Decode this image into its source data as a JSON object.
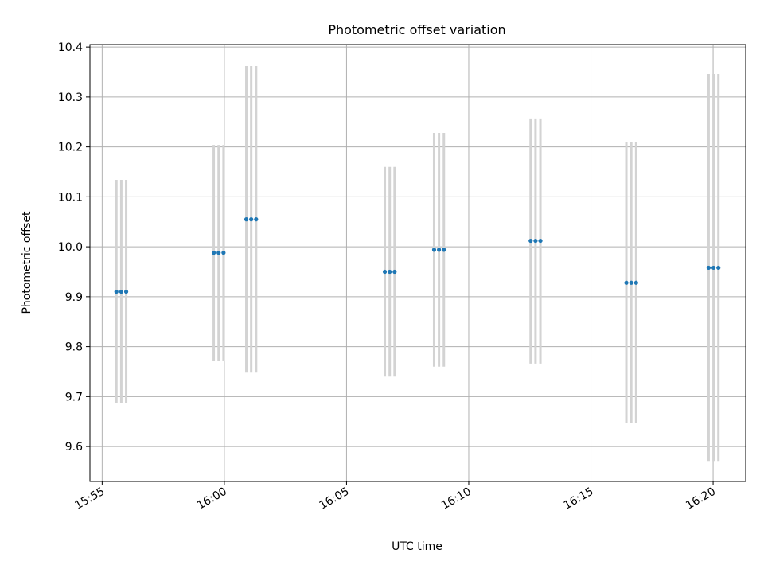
{
  "chart_data": {
    "type": "scatter",
    "title": "Photometric offset variation",
    "xlabel": "UTC time",
    "ylabel": "Photometric offset",
    "xlim": [
      "15:54:30",
      "16:21:20"
    ],
    "ylim": [
      9.53,
      10.405
    ],
    "x_ticks": [
      "15:55",
      "16:00",
      "16:05",
      "16:10",
      "16:15",
      "16:20"
    ],
    "y_ticks": [
      "9.6",
      "9.7",
      "9.8",
      "9.9",
      "10.0",
      "10.1",
      "10.2",
      "10.3",
      "10.4"
    ],
    "grid": true,
    "colors": {
      "points": "#1f77b4",
      "errorbars": "#d3d3d3",
      "grid": "#b0b0b0"
    },
    "series": [
      {
        "points": [
          {
            "time": "15:55:35",
            "y": 9.91,
            "ymin": 9.687,
            "ymax": 10.134
          },
          {
            "time": "15:55:47",
            "y": 9.91,
            "ymin": 9.687,
            "ymax": 10.134
          },
          {
            "time": "15:55:59",
            "y": 9.91,
            "ymin": 9.687,
            "ymax": 10.134
          },
          {
            "time": "15:59:34",
            "y": 9.988,
            "ymin": 9.772,
            "ymax": 10.204
          },
          {
            "time": "15:59:46",
            "y": 9.988,
            "ymin": 9.772,
            "ymax": 10.204
          },
          {
            "time": "15:59:58",
            "y": 9.988,
            "ymin": 9.772,
            "ymax": 10.204
          },
          {
            "time": "16:00:54",
            "y": 10.055,
            "ymin": 9.748,
            "ymax": 10.362
          },
          {
            "time": "16:01:06",
            "y": 10.055,
            "ymin": 9.748,
            "ymax": 10.362
          },
          {
            "time": "16:01:18",
            "y": 10.055,
            "ymin": 9.748,
            "ymax": 10.362
          },
          {
            "time": "16:06:34",
            "y": 9.95,
            "ymin": 9.74,
            "ymax": 10.16
          },
          {
            "time": "16:06:46",
            "y": 9.95,
            "ymin": 9.74,
            "ymax": 10.16
          },
          {
            "time": "16:06:58",
            "y": 9.95,
            "ymin": 9.74,
            "ymax": 10.16
          },
          {
            "time": "16:08:35",
            "y": 9.994,
            "ymin": 9.76,
            "ymax": 10.228
          },
          {
            "time": "16:08:47",
            "y": 9.994,
            "ymin": 9.76,
            "ymax": 10.228
          },
          {
            "time": "16:08:59",
            "y": 9.994,
            "ymin": 9.76,
            "ymax": 10.228
          },
          {
            "time": "16:12:32",
            "y": 10.012,
            "ymin": 9.766,
            "ymax": 10.257
          },
          {
            "time": "16:12:44",
            "y": 10.012,
            "ymin": 9.766,
            "ymax": 10.257
          },
          {
            "time": "16:12:56",
            "y": 10.012,
            "ymin": 9.766,
            "ymax": 10.257
          },
          {
            "time": "16:16:27",
            "y": 9.928,
            "ymin": 9.647,
            "ymax": 10.21
          },
          {
            "time": "16:16:39",
            "y": 9.928,
            "ymin": 9.647,
            "ymax": 10.21
          },
          {
            "time": "16:16:51",
            "y": 9.928,
            "ymin": 9.647,
            "ymax": 10.21
          },
          {
            "time": "16:19:49",
            "y": 9.958,
            "ymin": 9.571,
            "ymax": 10.346
          },
          {
            "time": "16:20:01",
            "y": 9.958,
            "ymin": 9.571,
            "ymax": 10.346
          },
          {
            "time": "16:20:13",
            "y": 9.958,
            "ymin": 9.571,
            "ymax": 10.346
          }
        ]
      }
    ]
  }
}
